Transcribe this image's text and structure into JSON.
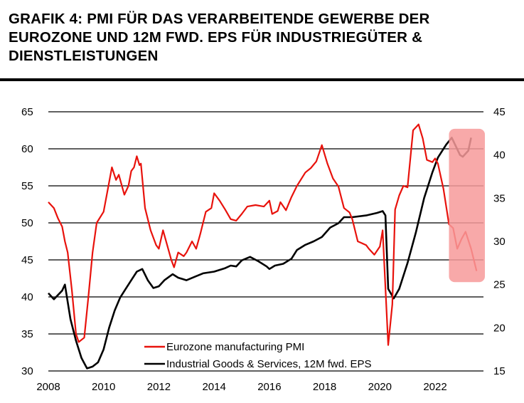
{
  "chart_data": {
    "type": "line",
    "title": "GRAFIK 4: PMI FÜR DAS VERARBEITENDE GEWERBE DER EUROZONE UND 12M FWD. EPS FÜR INDUSTRIEGÜTER & DIENSTLEISTUNGEN",
    "xlim": [
      2008,
      2024
    ],
    "x_ticks": [
      "2008",
      "2010",
      "2012",
      "2014",
      "2016",
      "2018",
      "2020",
      "2022"
    ],
    "y_left": {
      "lim": [
        30,
        65
      ],
      "ticks": [
        "30",
        "35",
        "40",
        "45",
        "50",
        "55",
        "60",
        "65"
      ]
    },
    "y_right": {
      "lim": [
        15,
        45
      ],
      "ticks": [
        "15",
        "20",
        "25",
        "30",
        "35",
        "40",
        "45"
      ]
    },
    "grid": true,
    "legend_position": "bottom-center",
    "highlight": {
      "x": [
        2022.5,
        2023.8
      ],
      "y_left": [
        42,
        62.7
      ],
      "color": "#f79a9a"
    },
    "series": [
      {
        "name": "Eurozone manufacturing PMI",
        "axis": "left",
        "color": "#e8120c",
        "x": [
          2008.0,
          2008.2,
          2008.35,
          2008.5,
          2008.6,
          2008.7,
          2008.85,
          2009.0,
          2009.1,
          2009.3,
          2009.45,
          2009.6,
          2009.75,
          2010.0,
          2010.2,
          2010.3,
          2010.45,
          2010.55,
          2010.75,
          2010.9,
          2011.0,
          2011.1,
          2011.2,
          2011.3,
          2011.35,
          2011.5,
          2011.7,
          2011.9,
          2012.0,
          2012.15,
          2012.3,
          2012.45,
          2012.55,
          2012.7,
          2012.9,
          2013.0,
          2013.2,
          2013.35,
          2013.5,
          2013.7,
          2013.9,
          2014.0,
          2014.2,
          2014.4,
          2014.6,
          2014.8,
          2015.0,
          2015.2,
          2015.5,
          2015.8,
          2016.0,
          2016.1,
          2016.3,
          2016.4,
          2016.6,
          2016.8,
          2017.0,
          2017.3,
          2017.5,
          2017.7,
          2017.9,
          2018.1,
          2018.3,
          2018.5,
          2018.7,
          2018.9,
          2019.0,
          2019.2,
          2019.5,
          2019.6,
          2019.8,
          2020.0,
          2020.1,
          2020.3,
          2020.45,
          2020.55,
          2020.7,
          2020.85,
          2021.0,
          2021.2,
          2021.4,
          2021.55,
          2021.7,
          2021.9,
          2022.0,
          2022.1,
          2022.3,
          2022.5,
          2022.65,
          2022.8,
          2022.95,
          2023.1,
          2023.3,
          2023.5
        ],
        "values": [
          52.8,
          52,
          50.6,
          49.5,
          47.5,
          46,
          41,
          35,
          33.9,
          34.5,
          40,
          46,
          50,
          51.5,
          55.5,
          57.5,
          55.8,
          56.5,
          53.8,
          55,
          57,
          57.5,
          59,
          57.8,
          58,
          52,
          49,
          47,
          46.5,
          49,
          47,
          45,
          44,
          46,
          45.5,
          46,
          47.5,
          46.5,
          48.5,
          51.5,
          52,
          54,
          53,
          51.8,
          50.5,
          50.3,
          51.2,
          52.2,
          52.4,
          52.2,
          53,
          51.2,
          51.6,
          52.8,
          51.7,
          53.5,
          55,
          56.8,
          57.4,
          58.3,
          60.5,
          58,
          56,
          54.9,
          52,
          51.4,
          50.5,
          47.5,
          47,
          46.5,
          45.7,
          46.8,
          49,
          33.5,
          39,
          51.8,
          53.7,
          55,
          54.8,
          62.5,
          63.3,
          61.4,
          58.5,
          58.2,
          58.7,
          58,
          54.6,
          49.8,
          49.3,
          46.5,
          47.8,
          48.8,
          46.5,
          43.5
        ]
      },
      {
        "name": "Industrial Goods & Services, 12M fwd. EPS",
        "axis": "right",
        "color": "#000000",
        "x": [
          2008.0,
          2008.2,
          2008.5,
          2008.6,
          2008.8,
          2009.0,
          2009.2,
          2009.4,
          2009.6,
          2009.8,
          2010.0,
          2010.2,
          2010.4,
          2010.6,
          2010.8,
          2011.0,
          2011.2,
          2011.4,
          2011.6,
          2011.8,
          2012.0,
          2012.2,
          2012.5,
          2012.7,
          2013.0,
          2013.3,
          2013.6,
          2014.0,
          2014.4,
          2014.6,
          2014.8,
          2015.0,
          2015.3,
          2015.6,
          2015.9,
          2016.0,
          2016.2,
          2016.5,
          2016.8,
          2017.0,
          2017.3,
          2017.6,
          2017.9,
          2018.2,
          2018.5,
          2018.7,
          2019.0,
          2019.5,
          2019.9,
          2020.1,
          2020.2,
          2020.3,
          2020.5,
          2020.7,
          2021.0,
          2021.3,
          2021.6,
          2021.9,
          2022.1,
          2022.4,
          2022.6,
          2022.9,
          2023.0,
          2023.2,
          2023.3
        ],
        "values": [
          24,
          23.3,
          24.3,
          25,
          21,
          18.5,
          16.5,
          15.3,
          15.5,
          16,
          17.5,
          20,
          22,
          23.5,
          24.5,
          25.5,
          26.5,
          26.8,
          25.5,
          24.6,
          24.8,
          25.5,
          26.2,
          25.8,
          25.5,
          25.9,
          26.3,
          26.5,
          26.9,
          27.2,
          27.1,
          27.8,
          28.2,
          27.7,
          27.1,
          26.8,
          27.2,
          27.4,
          28,
          29,
          29.6,
          30,
          30.5,
          31.6,
          32.1,
          32.8,
          32.8,
          33,
          33.3,
          33.5,
          33,
          24.5,
          23.4,
          24.5,
          27.5,
          31,
          35,
          38,
          39.7,
          41.2,
          42,
          40,
          39.8,
          40.5,
          42
        ]
      }
    ]
  }
}
